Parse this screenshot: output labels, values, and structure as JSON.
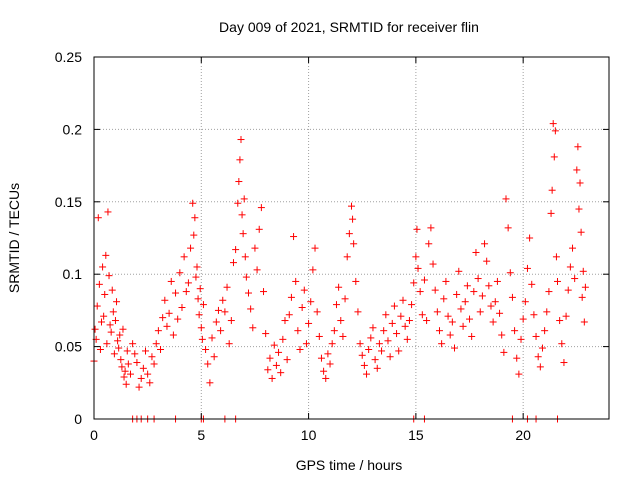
{
  "chart_data": {
    "type": "scatter",
    "title": "Day 009 of 2021, SRMTID for receiver flin",
    "xlabel": "GPS time / hours",
    "ylabel": "SRMTID / TECUs",
    "xlim": [
      0,
      24
    ],
    "ylim": [
      0,
      0.25
    ],
    "xticks": [
      0,
      5,
      10,
      15,
      20
    ],
    "yticks": [
      0,
      0.05,
      0.1,
      0.15,
      0.2,
      0.25
    ],
    "xtick_labels": [
      "0",
      "5",
      "10",
      "15",
      "20"
    ],
    "ytick_labels": [
      "0",
      "0.05",
      "0.1",
      "0.15",
      "0.2",
      "0.25"
    ],
    "grid": true,
    "marker": "plus",
    "color": "#ff0000",
    "series": [
      {
        "values": [
          [
            0.0,
            0.04
          ],
          [
            0.05,
            0.062
          ],
          [
            0.1,
            0.055
          ],
          [
            0.15,
            0.078
          ],
          [
            0.2,
            0.139
          ],
          [
            0.25,
            0.093
          ],
          [
            0.3,
            0.048
          ],
          [
            0.35,
            0.067
          ],
          [
            0.4,
            0.105
          ],
          [
            0.45,
            0.071
          ],
          [
            0.5,
            0.086
          ],
          [
            0.55,
            0.113
          ],
          [
            0.6,
            0.052
          ],
          [
            0.65,
            0.143
          ],
          [
            0.7,
            0.099
          ],
          [
            0.75,
            0.065
          ],
          [
            0.8,
            0.06
          ],
          [
            0.85,
            0.089
          ],
          [
            0.9,
            0.074
          ],
          [
            0.95,
            0.045
          ],
          [
            1.0,
            0.068
          ],
          [
            1.05,
            0.081
          ],
          [
            1.1,
            0.054
          ],
          [
            1.15,
            0.049
          ],
          [
            1.2,
            0.058
          ],
          [
            1.25,
            0.041
          ],
          [
            1.3,
            0.036
          ],
          [
            1.35,
            0.062
          ],
          [
            1.4,
            0.029
          ],
          [
            1.45,
            0.033
          ],
          [
            1.5,
            0.024
          ],
          [
            1.55,
            0.047
          ],
          [
            1.6,
            0.038
          ],
          [
            1.7,
            0.031
          ],
          [
            1.8,
            0.052
          ],
          [
            1.9,
            0.045
          ],
          [
            2.0,
            0.039
          ],
          [
            2.1,
            0.022
          ],
          [
            2.2,
            0.028
          ],
          [
            2.3,
            0.035
          ],
          [
            2.4,
            0.047
          ],
          [
            2.5,
            0.031
          ],
          [
            2.6,
            0.025
          ],
          [
            2.7,
            0.043
          ],
          [
            2.8,
            0.038
          ],
          [
            2.9,
            0.052
          ],
          [
            3.0,
            0.061
          ],
          [
            3.1,
            0.048
          ],
          [
            3.2,
            0.07
          ],
          [
            3.3,
            0.082
          ],
          [
            3.4,
            0.064
          ],
          [
            3.5,
            0.073
          ],
          [
            3.6,
            0.095
          ],
          [
            3.7,
            0.058
          ],
          [
            3.8,
            0.087
          ],
          [
            3.9,
            0.069
          ],
          [
            4.0,
            0.101
          ],
          [
            4.1,
            0.077
          ],
          [
            4.2,
            0.112
          ],
          [
            4.3,
            0.088
          ],
          [
            4.4,
            0.094
          ],
          [
            4.5,
            0.118
          ],
          [
            4.6,
            0.149
          ],
          [
            4.65,
            0.127
          ],
          [
            4.7,
            0.139
          ],
          [
            4.75,
            0.098
          ],
          [
            4.8,
            0.105
          ],
          [
            4.85,
            0.083
          ],
          [
            4.9,
            0.072
          ],
          [
            4.95,
            0.09
          ],
          [
            5.0,
            0.063
          ],
          [
            5.05,
            0.055
          ],
          [
            5.1,
            0.079
          ],
          [
            5.2,
            0.048
          ],
          [
            5.3,
            0.038
          ],
          [
            5.4,
            0.025
          ],
          [
            5.5,
            0.056
          ],
          [
            5.6,
            0.043
          ],
          [
            5.7,
            0.067
          ],
          [
            5.8,
            0.075
          ],
          [
            5.9,
            0.061
          ],
          [
            6.0,
            0.082
          ],
          [
            6.1,
            0.074
          ],
          [
            6.2,
            0.091
          ],
          [
            6.3,
            0.052
          ],
          [
            6.4,
            0.068
          ],
          [
            6.5,
            0.108
          ],
          [
            6.6,
            0.117
          ],
          [
            6.7,
            0.149
          ],
          [
            6.75,
            0.164
          ],
          [
            6.8,
            0.179
          ],
          [
            6.85,
            0.193
          ],
          [
            6.9,
            0.141
          ],
          [
            6.95,
            0.128
          ],
          [
            7.0,
            0.152
          ],
          [
            7.05,
            0.112
          ],
          [
            7.1,
            0.098
          ],
          [
            7.2,
            0.087
          ],
          [
            7.3,
            0.076
          ],
          [
            7.4,
            0.063
          ],
          [
            7.5,
            0.118
          ],
          [
            7.6,
            0.103
          ],
          [
            7.7,
            0.131
          ],
          [
            7.8,
            0.146
          ],
          [
            7.9,
            0.088
          ],
          [
            8.0,
            0.059
          ],
          [
            8.1,
            0.034
          ],
          [
            8.2,
            0.042
          ],
          [
            8.3,
            0.028
          ],
          [
            8.4,
            0.051
          ],
          [
            8.5,
            0.037
          ],
          [
            8.6,
            0.046
          ],
          [
            8.7,
            0.032
          ],
          [
            8.8,
            0.055
          ],
          [
            8.9,
            0.068
          ],
          [
            9.0,
            0.041
          ],
          [
            9.1,
            0.072
          ],
          [
            9.2,
            0.084
          ],
          [
            9.3,
            0.126
          ],
          [
            9.4,
            0.095
          ],
          [
            9.5,
            0.061
          ],
          [
            9.6,
            0.048
          ],
          [
            9.7,
            0.077
          ],
          [
            9.8,
            0.089
          ],
          [
            9.9,
            0.052
          ],
          [
            10.0,
            0.066
          ],
          [
            10.1,
            0.081
          ],
          [
            10.2,
            0.103
          ],
          [
            10.3,
            0.118
          ],
          [
            10.4,
            0.074
          ],
          [
            10.5,
            0.057
          ],
          [
            10.6,
            0.042
          ],
          [
            10.7,
            0.033
          ],
          [
            10.8,
            0.028
          ],
          [
            10.9,
            0.045
          ],
          [
            11.0,
            0.038
          ],
          [
            11.1,
            0.052
          ],
          [
            11.2,
            0.061
          ],
          [
            11.3,
            0.079
          ],
          [
            11.4,
            0.091
          ],
          [
            11.5,
            0.068
          ],
          [
            11.6,
            0.057
          ],
          [
            11.7,
            0.083
          ],
          [
            11.8,
            0.112
          ],
          [
            11.9,
            0.128
          ],
          [
            12.0,
            0.147
          ],
          [
            12.05,
            0.138
          ],
          [
            12.1,
            0.121
          ],
          [
            12.2,
            0.095
          ],
          [
            12.3,
            0.074
          ],
          [
            12.4,
            0.052
          ],
          [
            12.5,
            0.044
          ],
          [
            12.6,
            0.037
          ],
          [
            12.7,
            0.031
          ],
          [
            12.8,
            0.048
          ],
          [
            12.9,
            0.056
          ],
          [
            13.0,
            0.063
          ],
          [
            13.1,
            0.041
          ],
          [
            13.2,
            0.035
          ],
          [
            13.3,
            0.052
          ],
          [
            13.4,
            0.047
          ],
          [
            13.5,
            0.061
          ],
          [
            13.6,
            0.072
          ],
          [
            13.7,
            0.054
          ],
          [
            13.8,
            0.043
          ],
          [
            13.9,
            0.066
          ],
          [
            14.0,
            0.078
          ],
          [
            14.1,
            0.059
          ],
          [
            14.2,
            0.047
          ],
          [
            14.3,
            0.071
          ],
          [
            14.4,
            0.082
          ],
          [
            14.5,
            0.064
          ],
          [
            14.6,
            0.055
          ],
          [
            14.7,
            0.068
          ],
          [
            14.8,
            0.079
          ],
          [
            14.9,
            0.094
          ],
          [
            15.0,
            0.112
          ],
          [
            15.05,
            0.131
          ],
          [
            15.1,
            0.104
          ],
          [
            15.2,
            0.088
          ],
          [
            15.3,
            0.072
          ],
          [
            15.4,
            0.096
          ],
          [
            15.5,
            0.068
          ],
          [
            15.6,
            0.121
          ],
          [
            15.7,
            0.132
          ],
          [
            15.8,
            0.107
          ],
          [
            15.9,
            0.089
          ],
          [
            16.0,
            0.074
          ],
          [
            16.1,
            0.061
          ],
          [
            16.2,
            0.052
          ],
          [
            16.3,
            0.083
          ],
          [
            16.4,
            0.095
          ],
          [
            16.5,
            0.071
          ],
          [
            16.6,
            0.058
          ],
          [
            16.7,
            0.067
          ],
          [
            16.8,
            0.049
          ],
          [
            16.9,
            0.086
          ],
          [
            17.0,
            0.102
          ],
          [
            17.1,
            0.076
          ],
          [
            17.2,
            0.064
          ],
          [
            17.3,
            0.081
          ],
          [
            17.4,
            0.092
          ],
          [
            17.5,
            0.069
          ],
          [
            17.6,
            0.057
          ],
          [
            17.7,
            0.088
          ],
          [
            17.8,
            0.115
          ],
          [
            17.9,
            0.097
          ],
          [
            18.0,
            0.074
          ],
          [
            18.1,
            0.085
          ],
          [
            18.2,
            0.121
          ],
          [
            18.3,
            0.109
          ],
          [
            18.4,
            0.092
          ],
          [
            18.5,
            0.078
          ],
          [
            18.6,
            0.067
          ],
          [
            18.7,
            0.081
          ],
          [
            18.8,
            0.095
          ],
          [
            18.9,
            0.073
          ],
          [
            19.0,
            0.058
          ],
          [
            19.1,
            0.046
          ],
          [
            19.2,
            0.152
          ],
          [
            19.3,
            0.132
          ],
          [
            19.4,
            0.101
          ],
          [
            19.5,
            0.084
          ],
          [
            19.6,
            0.061
          ],
          [
            19.7,
            0.042
          ],
          [
            19.8,
            0.031
          ],
          [
            19.9,
            0.055
          ],
          [
            20.0,
            0.069
          ],
          [
            20.1,
            0.081
          ],
          [
            20.2,
            0.104
          ],
          [
            20.3,
            0.125
          ],
          [
            20.4,
            0.093
          ],
          [
            20.5,
            0.072
          ],
          [
            20.6,
            0.057
          ],
          [
            20.7,
            0.043
          ],
          [
            20.8,
            0.036
          ],
          [
            20.9,
            0.049
          ],
          [
            21.0,
            0.061
          ],
          [
            21.1,
            0.074
          ],
          [
            21.2,
            0.088
          ],
          [
            21.3,
            0.142
          ],
          [
            21.35,
            0.158
          ],
          [
            21.4,
            0.204
          ],
          [
            21.45,
            0.181
          ],
          [
            21.5,
            0.199
          ],
          [
            21.55,
            0.112
          ],
          [
            21.6,
            0.095
          ],
          [
            21.7,
            0.068
          ],
          [
            21.8,
            0.052
          ],
          [
            21.9,
            0.039
          ],
          [
            22.0,
            0.071
          ],
          [
            22.1,
            0.089
          ],
          [
            22.2,
            0.105
          ],
          [
            22.3,
            0.118
          ],
          [
            22.4,
            0.097
          ],
          [
            22.5,
            0.172
          ],
          [
            22.55,
            0.188
          ],
          [
            22.6,
            0.145
          ],
          [
            22.65,
            0.163
          ],
          [
            22.7,
            0.129
          ],
          [
            22.75,
            0.084
          ],
          [
            22.8,
            0.102
          ],
          [
            22.85,
            0.067
          ],
          [
            22.9,
            0.091
          ]
        ]
      }
    ],
    "zero_points_x": [
      1.8,
      2.0,
      2.2,
      2.5,
      2.8,
      3.8,
      5.0,
      5.1,
      6.1,
      6.6,
      14.9,
      15.4,
      19.5,
      20.2,
      20.6,
      21.6
    ]
  }
}
